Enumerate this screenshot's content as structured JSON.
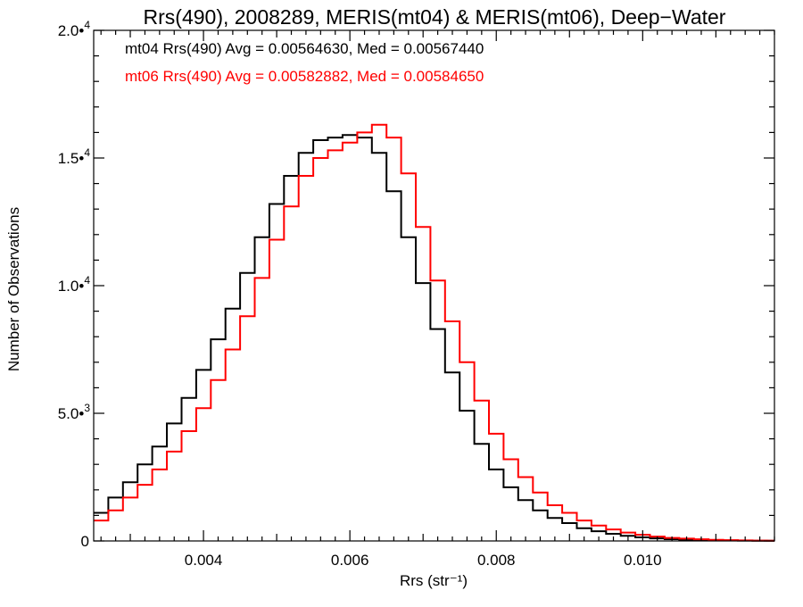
{
  "chart_data": {
    "type": "line",
    "title": "Rrs(490), 2008289, MERIS(mt04) & MERIS(mt06), Deep−Water",
    "xlabel": "Rrs (str⁻¹)",
    "ylabel": "Number of Observations",
    "xlim": [
      0.0025,
      0.0118
    ],
    "ylim": [
      0,
      20000
    ],
    "x_ticks": [
      {
        "value": 0.004,
        "label": "0.004"
      },
      {
        "value": 0.006,
        "label": "0.006"
      },
      {
        "value": 0.008,
        "label": "0.008"
      },
      {
        "value": 0.01,
        "label": "0.010"
      }
    ],
    "y_ticks": [
      {
        "value": 0,
        "mantissa": "0",
        "exponent": ""
      },
      {
        "value": 5000,
        "mantissa": "5.0•",
        "exponent": "3"
      },
      {
        "value": 10000,
        "mantissa": "1.0•",
        "exponent": "4"
      },
      {
        "value": 15000,
        "mantissa": "1.5•",
        "exponent": "4"
      },
      {
        "value": 20000,
        "mantissa": "2.0•",
        "exponent": "4"
      }
    ],
    "grid": false,
    "legend_placement": "top-left",
    "series": [
      {
        "name": "mt04",
        "color": "#000000",
        "annotation": "mt04 Rrs(490) Avg = 0.00564630, Med = 0.00567440",
        "x": [
          0.0025,
          0.0027,
          0.0029,
          0.0031,
          0.0033,
          0.0035,
          0.0037,
          0.0039,
          0.0041,
          0.0043,
          0.0045,
          0.0047,
          0.0049,
          0.0051,
          0.0053,
          0.0055,
          0.0057,
          0.0059,
          0.0061,
          0.0063,
          0.0065,
          0.0067,
          0.0069,
          0.0071,
          0.0073,
          0.0075,
          0.0077,
          0.0079,
          0.0081,
          0.0083,
          0.0085,
          0.0087,
          0.0089,
          0.0091,
          0.0093,
          0.0095,
          0.0097,
          0.0099,
          0.0101,
          0.0103,
          0.0105,
          0.0107,
          0.0109,
          0.0111,
          0.0113,
          0.0115,
          0.0117
        ],
        "y": [
          1100,
          1700,
          2300,
          3000,
          3700,
          4600,
          5600,
          6700,
          7900,
          9100,
          10500,
          11900,
          13200,
          14300,
          15200,
          15700,
          15800,
          15900,
          15800,
          15200,
          13700,
          11900,
          10100,
          8300,
          6600,
          5100,
          3800,
          2800,
          2100,
          1600,
          1200,
          900,
          700,
          500,
          380,
          280,
          200,
          140,
          100,
          70,
          50,
          35,
          25,
          20,
          15,
          10,
          8
        ]
      },
      {
        "name": "mt06",
        "color": "#ff0000",
        "annotation": "mt06 Rrs(490) Avg = 0.00582882, Med = 0.00584650",
        "x": [
          0.0025,
          0.0027,
          0.0029,
          0.0031,
          0.0033,
          0.0035,
          0.0037,
          0.0039,
          0.0041,
          0.0043,
          0.0045,
          0.0047,
          0.0049,
          0.0051,
          0.0053,
          0.0055,
          0.0057,
          0.0059,
          0.0061,
          0.0063,
          0.0065,
          0.0067,
          0.0069,
          0.0071,
          0.0073,
          0.0075,
          0.0077,
          0.0079,
          0.0081,
          0.0083,
          0.0085,
          0.0087,
          0.0089,
          0.0091,
          0.0093,
          0.0095,
          0.0097,
          0.0099,
          0.0101,
          0.0103,
          0.0105,
          0.0107,
          0.0109,
          0.0111,
          0.0113,
          0.0115,
          0.0117
        ],
        "y": [
          800,
          1200,
          1700,
          2200,
          2800,
          3500,
          4300,
          5200,
          6300,
          7500,
          8800,
          10300,
          11800,
          13100,
          14300,
          15000,
          15300,
          15600,
          16000,
          16300,
          15800,
          14400,
          12300,
          10200,
          8600,
          7000,
          5500,
          4200,
          3200,
          2500,
          1900,
          1400,
          1100,
          800,
          600,
          450,
          330,
          240,
          170,
          120,
          90,
          65,
          45,
          30,
          20,
          15,
          10
        ]
      }
    ]
  }
}
